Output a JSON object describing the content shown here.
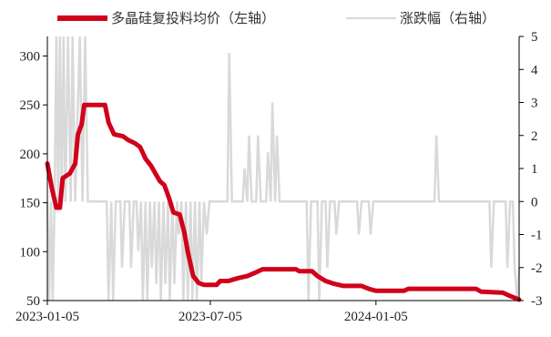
{
  "chart_data": {
    "type": "line",
    "legend_position": "top",
    "grid": false,
    "x_ticks": [
      "2023-01-05",
      "2023-07-05",
      "2024-01-05"
    ],
    "x_range": [
      "2023-01-05",
      "2024-06-12"
    ],
    "y_left": {
      "range": [
        50,
        320
      ],
      "ticks": [
        50,
        100,
        150,
        200,
        250,
        300
      ]
    },
    "y_right": {
      "range": [
        -3,
        5
      ],
      "ticks": [
        -3,
        -2,
        -1,
        0,
        1,
        2,
        3,
        4,
        5
      ]
    },
    "series": [
      {
        "name": "多晶硅复投料均价（左轴）",
        "axis": "left",
        "color": "#d0021b",
        "points": [
          [
            "2023-01-05",
            190
          ],
          [
            "2023-01-10",
            165
          ],
          [
            "2023-01-15",
            145
          ],
          [
            "2023-01-19",
            145
          ],
          [
            "2023-01-22",
            175
          ],
          [
            "2023-01-30",
            180
          ],
          [
            "2023-02-05",
            190
          ],
          [
            "2023-02-08",
            220
          ],
          [
            "2023-02-12",
            230
          ],
          [
            "2023-02-15",
            250
          ],
          [
            "2023-03-10",
            250
          ],
          [
            "2023-03-14",
            232
          ],
          [
            "2023-03-20",
            220
          ],
          [
            "2023-03-30",
            218
          ],
          [
            "2023-04-05",
            214
          ],
          [
            "2023-04-12",
            211
          ],
          [
            "2023-04-18",
            207
          ],
          [
            "2023-04-24",
            195
          ],
          [
            "2023-04-30",
            188
          ],
          [
            "2023-05-05",
            180
          ],
          [
            "2023-05-10",
            172
          ],
          [
            "2023-05-15",
            168
          ],
          [
            "2023-05-20",
            155
          ],
          [
            "2023-05-25",
            140
          ],
          [
            "2023-06-01",
            138
          ],
          [
            "2023-06-06",
            120
          ],
          [
            "2023-06-10",
            100
          ],
          [
            "2023-06-16",
            75
          ],
          [
            "2023-06-22",
            68
          ],
          [
            "2023-06-28",
            66
          ],
          [
            "2023-07-12",
            66
          ],
          [
            "2023-07-16",
            70
          ],
          [
            "2023-07-25",
            70
          ],
          [
            "2023-08-05",
            73
          ],
          [
            "2023-08-15",
            75
          ],
          [
            "2023-08-25",
            79
          ],
          [
            "2023-09-01",
            82
          ],
          [
            "2023-10-08",
            82
          ],
          [
            "2023-10-12",
            80
          ],
          [
            "2023-10-26",
            80
          ],
          [
            "2023-11-01",
            75
          ],
          [
            "2023-11-10",
            70
          ],
          [
            "2023-11-20",
            67
          ],
          [
            "2023-11-30",
            65
          ],
          [
            "2023-12-20",
            65
          ],
          [
            "2023-12-28",
            62
          ],
          [
            "2024-01-05",
            60
          ],
          [
            "2024-02-05",
            60
          ],
          [
            "2024-02-10",
            62
          ],
          [
            "2024-04-25",
            62
          ],
          [
            "2024-05-01",
            59
          ],
          [
            "2024-05-25",
            58
          ],
          [
            "2024-06-01",
            55
          ],
          [
            "2024-06-12",
            51
          ]
        ]
      },
      {
        "name": "涨跌幅（右轴）",
        "axis": "right",
        "color": "#d9d9d9",
        "points": [
          [
            "2023-01-05",
            0
          ],
          [
            "2023-01-07",
            -3
          ],
          [
            "2023-01-09",
            0
          ],
          [
            "2023-01-11",
            -3
          ],
          [
            "2023-01-13",
            0
          ],
          [
            "2023-01-15",
            5
          ],
          [
            "2023-01-17",
            0
          ],
          [
            "2023-01-19",
            5
          ],
          [
            "2023-01-21",
            0
          ],
          [
            "2023-01-23",
            5
          ],
          [
            "2023-01-25",
            0
          ],
          [
            "2023-01-28",
            5
          ],
          [
            "2023-01-31",
            0
          ],
          [
            "2023-02-02",
            5
          ],
          [
            "2023-02-05",
            0
          ],
          [
            "2023-02-10",
            5
          ],
          [
            "2023-02-13",
            0
          ],
          [
            "2023-02-16",
            5
          ],
          [
            "2023-02-19",
            0
          ],
          [
            "2023-03-12",
            0
          ],
          [
            "2023-03-14",
            -3
          ],
          [
            "2023-03-17",
            0
          ],
          [
            "2023-03-19",
            -3
          ],
          [
            "2023-03-22",
            0
          ],
          [
            "2023-03-27",
            0
          ],
          [
            "2023-03-29",
            -2
          ],
          [
            "2023-04-01",
            0
          ],
          [
            "2023-04-06",
            0
          ],
          [
            "2023-04-08",
            -2
          ],
          [
            "2023-04-11",
            0
          ],
          [
            "2023-04-14",
            0
          ],
          [
            "2023-04-16",
            -1.5
          ],
          [
            "2023-04-19",
            0
          ],
          [
            "2023-04-21",
            -3
          ],
          [
            "2023-04-24",
            0
          ],
          [
            "2023-04-26",
            -3
          ],
          [
            "2023-04-29",
            0
          ],
          [
            "2023-05-01",
            -2
          ],
          [
            "2023-05-04",
            0
          ],
          [
            "2023-05-06",
            -2.5
          ],
          [
            "2023-05-09",
            0
          ],
          [
            "2023-05-11",
            -3
          ],
          [
            "2023-05-14",
            0
          ],
          [
            "2023-05-16",
            -2.5
          ],
          [
            "2023-05-19",
            0
          ],
          [
            "2023-05-21",
            -3
          ],
          [
            "2023-05-24",
            0
          ],
          [
            "2023-05-26",
            -2.5
          ],
          [
            "2023-05-29",
            0
          ],
          [
            "2023-05-31",
            -1
          ],
          [
            "2023-06-03",
            0
          ],
          [
            "2023-06-05",
            -3
          ],
          [
            "2023-06-08",
            0
          ],
          [
            "2023-06-10",
            -3
          ],
          [
            "2023-06-13",
            0
          ],
          [
            "2023-06-15",
            -3
          ],
          [
            "2023-06-18",
            0
          ],
          [
            "2023-06-20",
            -3
          ],
          [
            "2023-06-23",
            0
          ],
          [
            "2023-06-25",
            -2.5
          ],
          [
            "2023-06-28",
            0
          ],
          [
            "2023-07-01",
            -1
          ],
          [
            "2023-07-04",
            0
          ],
          [
            "2023-07-24",
            0
          ],
          [
            "2023-07-26",
            4.5
          ],
          [
            "2023-07-29",
            0
          ],
          [
            "2023-08-10",
            0
          ],
          [
            "2023-08-12",
            1
          ],
          [
            "2023-08-15",
            0
          ],
          [
            "2023-08-17",
            2
          ],
          [
            "2023-08-20",
            0
          ],
          [
            "2023-08-25",
            0
          ],
          [
            "2023-08-27",
            2
          ],
          [
            "2023-08-30",
            0
          ],
          [
            "2023-09-05",
            0
          ],
          [
            "2023-09-07",
            1.5
          ],
          [
            "2023-09-10",
            0
          ],
          [
            "2023-09-12",
            3
          ],
          [
            "2023-09-15",
            0
          ],
          [
            "2023-09-17",
            2
          ],
          [
            "2023-09-20",
            0
          ],
          [
            "2023-10-20",
            0
          ],
          [
            "2023-10-22",
            -3
          ],
          [
            "2023-10-25",
            0
          ],
          [
            "2023-11-01",
            0
          ],
          [
            "2023-11-03",
            -3
          ],
          [
            "2023-11-06",
            0
          ],
          [
            "2023-11-10",
            0
          ],
          [
            "2023-11-12",
            -2
          ],
          [
            "2023-11-15",
            0
          ],
          [
            "2023-11-20",
            0
          ],
          [
            "2023-11-22",
            -1
          ],
          [
            "2023-11-25",
            0
          ],
          [
            "2023-12-15",
            0
          ],
          [
            "2023-12-17",
            -1
          ],
          [
            "2023-12-20",
            0
          ],
          [
            "2023-12-28",
            0
          ],
          [
            "2023-12-30",
            -1
          ],
          [
            "2024-01-02",
            0
          ],
          [
            "2024-03-10",
            0
          ],
          [
            "2024-03-12",
            2
          ],
          [
            "2024-03-15",
            0
          ],
          [
            "2024-05-10",
            0
          ],
          [
            "2024-05-12",
            -2
          ],
          [
            "2024-05-15",
            0
          ],
          [
            "2024-05-28",
            0
          ],
          [
            "2024-05-30",
            -2
          ],
          [
            "2024-06-02",
            0
          ],
          [
            "2024-06-05",
            0
          ],
          [
            "2024-06-07",
            -2
          ],
          [
            "2024-06-10",
            -3
          ],
          [
            "2024-06-12",
            -2
          ]
        ]
      }
    ]
  }
}
